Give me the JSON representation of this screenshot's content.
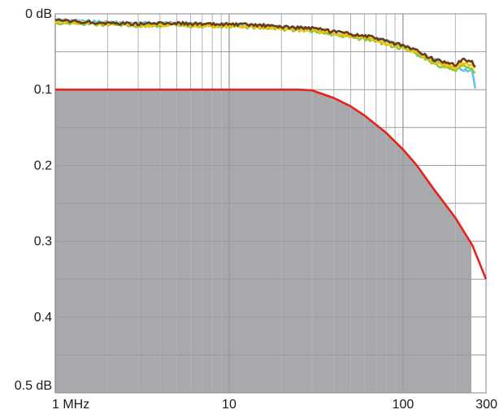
{
  "chart_data": {
    "type": "line",
    "title": "",
    "xlabel": "",
    "ylabel": "",
    "x_scale": "log",
    "xlim": [
      1,
      300
    ],
    "ylim": [
      0,
      0.5
    ],
    "y_inverted": true,
    "grid": true,
    "x_ticks": [
      {
        "value": 1,
        "label": "1 MHz"
      },
      {
        "value": 10,
        "label": "10"
      },
      {
        "value": 100,
        "label": "100"
      },
      {
        "value": 300,
        "label": "300"
      }
    ],
    "y_ticks": [
      {
        "value": 0,
        "label": "0 dB"
      },
      {
        "value": 0.1,
        "label": "0.1"
      },
      {
        "value": 0.2,
        "label": "0.2"
      },
      {
        "value": 0.3,
        "label": "0.3"
      },
      {
        "value": 0.4,
        "label": "0.4"
      },
      {
        "value": 0.5,
        "label": "0.5 dB"
      }
    ],
    "limit": {
      "color": "#e8211b",
      "fill": "#a7a9ac",
      "x": [
        1,
        25,
        30,
        40,
        50,
        60,
        80,
        100,
        120,
        150,
        200,
        250,
        300
      ],
      "y": [
        0.1,
        0.1,
        0.101,
        0.111,
        0.122,
        0.134,
        0.157,
        0.179,
        0.2,
        0.231,
        0.269,
        0.305,
        0.35
      ]
    },
    "series": [
      {
        "color": "#5bc7e8",
        "x": [
          1,
          1.5,
          2,
          3,
          5,
          7,
          10,
          15,
          20,
          30,
          40,
          50,
          60,
          70,
          80,
          100,
          120,
          150,
          170,
          200,
          220,
          250,
          260
        ],
        "y": [
          0.008,
          0.01,
          0.011,
          0.013,
          0.012,
          0.014,
          0.015,
          0.016,
          0.018,
          0.02,
          0.026,
          0.028,
          0.03,
          0.033,
          0.036,
          0.042,
          0.052,
          0.06,
          0.068,
          0.072,
          0.073,
          0.075,
          0.1
        ]
      },
      {
        "color": "#8dc63f",
        "x": [
          1,
          1.5,
          2,
          3,
          5,
          7,
          10,
          15,
          20,
          30,
          40,
          50,
          60,
          70,
          80,
          100,
          120,
          150,
          170,
          200,
          220,
          250,
          260
        ],
        "y": [
          0.012,
          0.013,
          0.014,
          0.016,
          0.015,
          0.017,
          0.017,
          0.018,
          0.02,
          0.022,
          0.028,
          0.031,
          0.034,
          0.036,
          0.04,
          0.046,
          0.053,
          0.066,
          0.07,
          0.075,
          0.068,
          0.074,
          0.077
        ]
      },
      {
        "color": "#f5c400",
        "x": [
          1,
          1.5,
          2,
          3,
          5,
          7,
          10,
          15,
          20,
          30,
          40,
          50,
          60,
          70,
          80,
          100,
          120,
          150,
          170,
          200,
          220,
          250,
          260
        ],
        "y": [
          0.01,
          0.012,
          0.013,
          0.015,
          0.014,
          0.016,
          0.016,
          0.017,
          0.019,
          0.021,
          0.026,
          0.029,
          0.031,
          0.034,
          0.038,
          0.044,
          0.051,
          0.063,
          0.067,
          0.071,
          0.064,
          0.069,
          0.072
        ]
      },
      {
        "color": "#6b3a1e",
        "x": [
          1,
          1.5,
          2,
          3,
          5,
          7,
          10,
          15,
          20,
          30,
          40,
          50,
          60,
          70,
          80,
          100,
          120,
          150,
          170,
          200,
          220,
          250,
          260
        ],
        "y": [
          0.009,
          0.011,
          0.012,
          0.013,
          0.012,
          0.014,
          0.014,
          0.015,
          0.017,
          0.019,
          0.024,
          0.027,
          0.029,
          0.032,
          0.036,
          0.042,
          0.049,
          0.06,
          0.064,
          0.068,
          0.06,
          0.064,
          0.068
        ]
      }
    ]
  }
}
